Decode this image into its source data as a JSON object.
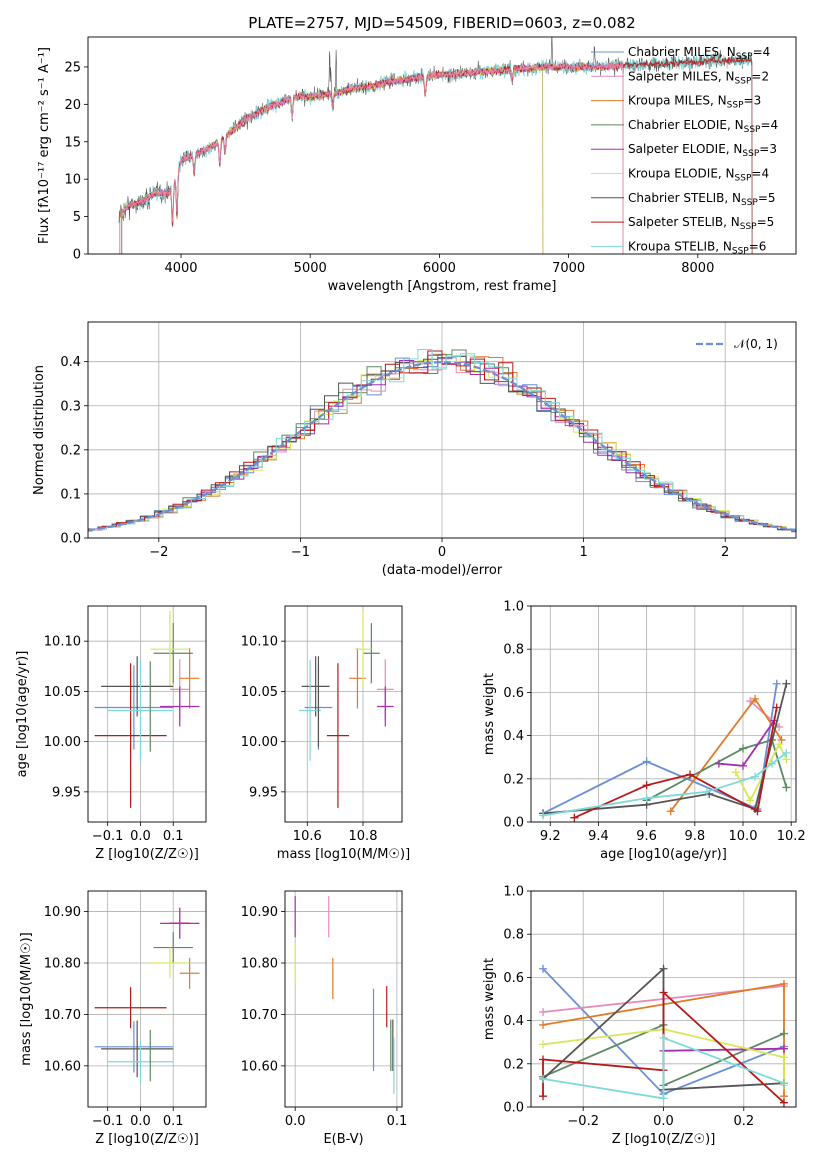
{
  "title": "PLATE=2757, MJD=54509, FIBERID=0603, z=0.082",
  "colors": {
    "Chabrier MILES": "#6b8fd6",
    "Salpeter MILES": "#e68bbd",
    "Kroupa MILES": "#e07b2a",
    "Chabrier ELODIE": "#5b8a64",
    "Salpeter ELODIE": "#a230b0",
    "Kroupa ELODIE": "#d9e85a",
    "Chabrier STELIB": "#555555",
    "Salpeter STELIB": "#b51a1a",
    "Kroupa STELIB": "#7ed9d9",
    "normal": "#6b8fd6"
  },
  "legend1": [
    {
      "name": "Chabrier MILES",
      "pre": "Chabrier MILES, N",
      "n": "=4"
    },
    {
      "name": "Salpeter MILES",
      "pre": "Salpeter MILES, N",
      "n": "=2"
    },
    {
      "name": "Kroupa MILES",
      "pre": "Kroupa MILES, N",
      "n": "=3"
    },
    {
      "name": "Chabrier ELODIE",
      "pre": "Chabrier ELODIE, N",
      "n": "=4"
    },
    {
      "name": "Salpeter ELODIE",
      "pre": "Salpeter ELODIE, N",
      "n": "=3"
    },
    {
      "name": "Kroupa ELODIE",
      "pre": "Kroupa ELODIE, N",
      "n": "=4"
    },
    {
      "name": "Chabrier STELIB",
      "pre": "Chabrier STELIB, N",
      "n": "=5"
    },
    {
      "name": "Salpeter STELIB",
      "pre": "Salpeter STELIB, N",
      "n": "=5"
    },
    {
      "name": "Kroupa STELIB",
      "pre": "Kroupa STELIB, N",
      "n": "=6"
    }
  ],
  "legend_sub": "SSP",
  "legend2": "𝒩(0, 1)",
  "chart_data": [
    {
      "type": "line",
      "panel": "spectrum",
      "xlabel": "wavelength [Angstrom, rest frame]",
      "ylabel": "Flux [fλ10⁻¹⁷ erg cm⁻² s⁻¹ A⁻¹]",
      "xlim": [
        3280,
        8760
      ],
      "ylim": [
        0,
        29
      ],
      "xticks": [
        4000,
        5000,
        6000,
        7000,
        8000
      ],
      "yticks": [
        0,
        5,
        10,
        15,
        20,
        25
      ],
      "continuum": [
        [
          3520,
          5.2
        ],
        [
          3600,
          6.5
        ],
        [
          3700,
          7.0
        ],
        [
          3800,
          8.2
        ],
        [
          3900,
          8.0
        ],
        [
          3950,
          9.5
        ],
        [
          4000,
          12.5
        ],
        [
          4100,
          13.2
        ],
        [
          4200,
          14.0
        ],
        [
          4300,
          15.0
        ],
        [
          4400,
          16.5
        ],
        [
          4500,
          18.0
        ],
        [
          4600,
          19.0
        ],
        [
          4700,
          19.8
        ],
        [
          4800,
          20.5
        ],
        [
          4900,
          21.0
        ],
        [
          5000,
          21.0
        ],
        [
          5100,
          21.3
        ],
        [
          5200,
          21.5
        ],
        [
          5300,
          22.0
        ],
        [
          5400,
          22.3
        ],
        [
          5500,
          22.5
        ],
        [
          5600,
          23.0
        ],
        [
          5700,
          23.2
        ],
        [
          5800,
          23.5
        ],
        [
          5900,
          23.7
        ],
        [
          6000,
          24.0
        ],
        [
          6100,
          24.0
        ],
        [
          6200,
          24.2
        ],
        [
          6300,
          24.3
        ],
        [
          6400,
          24.5
        ],
        [
          6500,
          24.6
        ],
        [
          6600,
          24.8
        ],
        [
          6700,
          24.8
        ],
        [
          6800,
          25.0
        ],
        [
          6900,
          25.0
        ],
        [
          7000,
          25.0
        ],
        [
          7100,
          25.0
        ],
        [
          7200,
          25.0
        ],
        [
          7300,
          25.0
        ],
        [
          7400,
          25.2
        ],
        [
          7600,
          25.4
        ],
        [
          7800,
          25.5
        ],
        [
          8000,
          25.7
        ],
        [
          8200,
          25.8
        ],
        [
          8400,
          25.9
        ]
      ],
      "dips": [
        [
          3934,
          5.0
        ],
        [
          3969,
          5.5
        ],
        [
          4102,
          2.5
        ],
        [
          4300,
          3.0
        ],
        [
          4340,
          2.0
        ],
        [
          4861,
          2.5
        ],
        [
          5175,
          2.0
        ],
        [
          5890,
          2.5
        ],
        [
          6563,
          1.5
        ],
        [
          8500,
          1.5
        ],
        [
          8542,
          1.5
        ]
      ],
      "spikes": [
        [
          5150,
          5.0
        ],
        [
          5160,
          4.0
        ],
        [
          5200,
          6.0
        ],
        [
          6870,
          4.0
        ],
        [
          7200,
          3.0
        ]
      ]
    },
    {
      "type": "histogram",
      "panel": "residuals",
      "xlabel": "(data-model)/error",
      "ylabel": "Normed distribution",
      "xlim": [
        -2.5,
        2.5
      ],
      "ylim": [
        0,
        0.49
      ],
      "xticks": [
        -2,
        -1,
        0,
        1,
        2
      ],
      "yticks": [
        0.0,
        0.1,
        0.2,
        0.3,
        0.4
      ],
      "bin_width": 0.1,
      "reference": "standard normal, dashed"
    },
    {
      "type": "scatter",
      "panel": "Z-age",
      "xlabel": "Z [log10(Z/Z☉)]",
      "ylabel": "age [log10(age/yr)]",
      "xlim": [
        -0.16,
        0.2
      ],
      "ylim": [
        9.92,
        10.135
      ],
      "xticks": [
        -0.1,
        0.0,
        0.1
      ],
      "yticks": [
        9.95,
        10.0,
        10.05,
        10.1
      ],
      "points": [
        {
          "s": "Chabrier MILES",
          "x": -0.02,
          "xe": 0.12,
          "y": 10.034,
          "ye": 0.042
        },
        {
          "s": "Salpeter MILES",
          "x": 0.12,
          "xe": 0.03,
          "y": 10.052,
          "ye": 0.03
        },
        {
          "s": "Kroupa MILES",
          "x": 0.15,
          "xe": 0.03,
          "y": 10.063,
          "ye": 0.03
        },
        {
          "s": "Chabrier ELODIE",
          "x": 0.1,
          "xe": 0.06,
          "y": 10.088,
          "ye": 0.03
        },
        {
          "s": "Salpeter ELODIE",
          "x": 0.12,
          "xe": 0.06,
          "y": 10.035,
          "ye": 0.02
        },
        {
          "s": "Kroupa ELODIE",
          "x": 0.09,
          "xe": 0.06,
          "y": 10.092,
          "ye": 0.038
        },
        {
          "s": "Chabrier STELIB",
          "x": -0.01,
          "xe": 0.11,
          "y": 10.055,
          "ye": 0.03
        },
        {
          "s": "Salpeter STELIB",
          "x": -0.03,
          "xe": 0.11,
          "y": 10.006,
          "ye": 0.072
        },
        {
          "s": "Kroupa STELIB",
          "x": 0.0,
          "xe": 0.1,
          "y": 10.031,
          "ye": 0.05
        },
        {
          "s": "Chabrier ELODIE",
          "x": 0.03,
          "xe": 0.0,
          "y": 10.035,
          "ye": 0.045
        }
      ]
    },
    {
      "type": "scatter",
      "panel": "mass-age",
      "xlabel": "mass [log10(M/M☉)]",
      "ylabel": "",
      "xlim": [
        10.52,
        10.94
      ],
      "ylim": [
        9.92,
        10.135
      ],
      "xticks": [
        10.6,
        10.8
      ],
      "yticks": [
        9.95,
        10.0,
        10.05,
        10.1
      ],
      "points": [
        {
          "s": "Chabrier MILES",
          "x": 10.64,
          "xe": 0.05,
          "y": 10.034,
          "ye": 0.042
        },
        {
          "s": "Salpeter MILES",
          "x": 10.88,
          "xe": 0.03,
          "y": 10.052,
          "ye": 0.03
        },
        {
          "s": "Kroupa MILES",
          "x": 10.78,
          "xe": 0.03,
          "y": 10.063,
          "ye": 0.03
        },
        {
          "s": "Chabrier ELODIE",
          "x": 10.83,
          "xe": 0.03,
          "y": 10.088,
          "ye": 0.03
        },
        {
          "s": "Salpeter ELODIE",
          "x": 10.88,
          "xe": 0.03,
          "y": 10.035,
          "ye": 0.02
        },
        {
          "s": "Kroupa ELODIE",
          "x": 10.8,
          "xe": 0.03,
          "y": 10.092,
          "ye": 0.038
        },
        {
          "s": "Chabrier STELIB",
          "x": 10.63,
          "xe": 0.05,
          "y": 10.055,
          "ye": 0.03
        },
        {
          "s": "Salpeter STELIB",
          "x": 10.71,
          "xe": 0.04,
          "y": 10.006,
          "ye": 0.072
        },
        {
          "s": "Kroupa STELIB",
          "x": 10.61,
          "xe": 0.04,
          "y": 10.031,
          "ye": 0.05
        },
        {
          "s": "Chabrier STELIB",
          "x": 10.64,
          "xe": 0.0,
          "y": 10.04,
          "ye": 0.045
        }
      ]
    },
    {
      "type": "line",
      "panel": "age-weight",
      "xlabel": "age [log10(age/yr)]",
      "ylabel": "mass weight",
      "xlim": [
        9.12,
        10.22
      ],
      "ylim": [
        0,
        1.0
      ],
      "xticks": [
        9.2,
        9.4,
        9.6,
        9.8,
        10.0,
        10.2
      ],
      "yticks": [
        0.0,
        0.2,
        0.4,
        0.6,
        0.8,
        1.0
      ],
      "series": [
        {
          "s": "Chabrier MILES",
          "x": [
            9.17,
            9.6,
            10.06,
            10.14
          ],
          "y": [
            0.04,
            0.28,
            0.06,
            0.64
          ]
        },
        {
          "s": "Salpeter MILES",
          "x": [
            10.03,
            10.15
          ],
          "y": [
            0.56,
            0.44
          ]
        },
        {
          "s": "Kroupa MILES",
          "x": [
            9.7,
            10.05,
            10.16
          ],
          "y": [
            0.05,
            0.57,
            0.38
          ]
        },
        {
          "s": "Chabrier ELODIE",
          "x": [
            9.6,
            10.0,
            10.12,
            10.18
          ],
          "y": [
            0.1,
            0.34,
            0.38,
            0.16
          ]
        },
        {
          "s": "Salpeter ELODIE",
          "x": [
            9.9,
            10.0,
            10.13
          ],
          "y": [
            0.27,
            0.26,
            0.47
          ]
        },
        {
          "s": "Kroupa ELODIE",
          "x": [
            9.97,
            10.03,
            10.15,
            10.18
          ],
          "y": [
            0.23,
            0.1,
            0.36,
            0.29
          ]
        },
        {
          "s": "Chabrier STELIB",
          "x": [
            9.17,
            9.6,
            9.86,
            10.05,
            10.18
          ],
          "y": [
            0.04,
            0.08,
            0.13,
            0.06,
            0.64
          ]
        },
        {
          "s": "Salpeter STELIB",
          "x": [
            9.3,
            9.6,
            9.78,
            10.06,
            10.14
          ],
          "y": [
            0.02,
            0.17,
            0.22,
            0.05,
            0.53
          ]
        },
        {
          "s": "Kroupa STELIB",
          "x": [
            9.17,
            9.6,
            9.85,
            10.05,
            10.12,
            10.18
          ],
          "y": [
            0.03,
            0.11,
            0.14,
            0.21,
            0.27,
            0.32
          ]
        }
      ]
    },
    {
      "type": "scatter",
      "panel": "Z-mass",
      "xlabel": "Z [log10(Z/Z☉)]",
      "ylabel": "mass [log10(M/M☉)]",
      "xlim": [
        -0.16,
        0.2
      ],
      "ylim": [
        10.52,
        10.94
      ],
      "xticks": [
        -0.1,
        0.0,
        0.1
      ],
      "yticks": [
        10.6,
        10.7,
        10.8,
        10.9
      ],
      "points": [
        {
          "s": "Chabrier MILES",
          "x": -0.02,
          "xe": 0.12,
          "y": 10.637,
          "ye": 0.05
        },
        {
          "s": "Salpeter MILES",
          "x": 0.12,
          "xe": 0.03,
          "y": 10.878,
          "ye": 0.03
        },
        {
          "s": "Kroupa MILES",
          "x": 0.15,
          "xe": 0.03,
          "y": 10.78,
          "ye": 0.03
        },
        {
          "s": "Chabrier ELODIE",
          "x": 0.1,
          "xe": 0.06,
          "y": 10.83,
          "ye": 0.03
        },
        {
          "s": "Salpeter ELODIE",
          "x": 0.12,
          "xe": 0.06,
          "y": 10.877,
          "ye": 0.03
        },
        {
          "s": "Kroupa ELODIE",
          "x": 0.09,
          "xe": 0.06,
          "y": 10.8,
          "ye": 0.03
        },
        {
          "s": "Chabrier STELIB",
          "x": -0.01,
          "xe": 0.11,
          "y": 10.633,
          "ye": 0.055
        },
        {
          "s": "Salpeter STELIB",
          "x": -0.03,
          "xe": 0.11,
          "y": 10.713,
          "ye": 0.04
        },
        {
          "s": "Kroupa STELIB",
          "x": 0.0,
          "xe": 0.1,
          "y": 10.608,
          "ye": 0.04
        },
        {
          "s": "Chabrier ELODIE",
          "x": 0.03,
          "xe": 0.0,
          "y": 10.62,
          "ye": 0.05
        }
      ]
    },
    {
      "type": "scatter",
      "panel": "EBV-mass",
      "xlabel": "E(B-V)",
      "ylabel": "",
      "xlim": [
        -0.01,
        0.105
      ],
      "ylim": [
        10.52,
        10.94
      ],
      "xticks": [
        0.0,
        0.1
      ],
      "yticks": [
        10.6,
        10.7,
        10.8,
        10.9
      ],
      "points": [
        {
          "s": "Chabrier MILES",
          "x": 0.077,
          "y": 10.67,
          "ye": 0.08
        },
        {
          "s": "Salpeter MILES",
          "x": 0.033,
          "y": 10.89,
          "ye": 0.04
        },
        {
          "s": "Kroupa MILES",
          "x": 0.037,
          "y": 10.77,
          "ye": 0.04
        },
        {
          "s": "Chabrier ELODIE",
          "x": 0.094,
          "y": 10.64,
          "ye": 0.05
        },
        {
          "s": "Salpeter ELODIE",
          "x": 0.0,
          "y": 10.89,
          "ye": 0.04
        },
        {
          "s": "Kroupa ELODIE",
          "x": 0.0,
          "y": 10.8,
          "ye": 0.04
        },
        {
          "s": "Chabrier STELIB",
          "x": 0.096,
          "y": 10.64,
          "ye": 0.05
        },
        {
          "s": "Salpeter STELIB",
          "x": 0.09,
          "y": 10.715,
          "ye": 0.04
        },
        {
          "s": "Kroupa STELIB",
          "x": 0.097,
          "y": 10.6,
          "ye": 0.055
        }
      ]
    },
    {
      "type": "line",
      "panel": "Z-weight",
      "xlabel": "Z [log10(Z/Z☉)]",
      "ylabel": "mass weight",
      "xlim": [
        -0.33,
        0.33
      ],
      "ylim": [
        0,
        1.0
      ],
      "xticks": [
        -0.2,
        0.0,
        0.2
      ],
      "yticks": [
        0.0,
        0.2,
        0.4,
        0.6,
        0.8,
        1.0
      ],
      "series": [
        {
          "s": "Chabrier MILES",
          "x": [
            -0.3,
            0.0,
            0.3
          ],
          "y": [
            0.64,
            0.06,
            0.28
          ]
        },
        {
          "s": "Salpeter MILES",
          "x": [
            -0.3,
            0.3
          ],
          "y": [
            0.44,
            0.56
          ]
        },
        {
          "s": "Kroupa MILES",
          "x": [
            -0.3,
            0.3,
            0.3
          ],
          "y": [
            0.38,
            0.57,
            0.05
          ]
        },
        {
          "s": "Chabrier ELODIE",
          "x": [
            -0.3,
            0.0,
            0.0,
            0.3
          ],
          "y": [
            0.14,
            0.38,
            0.1,
            0.34
          ]
        },
        {
          "s": "Salpeter ELODIE",
          "x": [
            0.0,
            0.3
          ],
          "y": [
            0.26,
            0.27
          ]
        },
        {
          "s": "Kroupa ELODIE",
          "x": [
            -0.3,
            0.0,
            0.3,
            0.3
          ],
          "y": [
            0.29,
            0.36,
            0.23,
            0.1
          ]
        },
        {
          "s": "Chabrier STELIB",
          "x": [
            -0.3,
            0.0,
            0.0,
            0.3
          ],
          "y": [
            0.13,
            0.64,
            0.08,
            0.11
          ]
        },
        {
          "s": "Salpeter STELIB",
          "x": [
            -0.3,
            -0.3,
            0.0,
            0.0,
            0.3
          ],
          "y": [
            0.05,
            0.22,
            0.17,
            0.53,
            0.02
          ]
        },
        {
          "s": "Kroupa STELIB",
          "x": [
            -0.3,
            0.0,
            0.0,
            0.3
          ],
          "y": [
            0.13,
            0.04,
            0.32,
            0.11
          ]
        }
      ]
    }
  ]
}
